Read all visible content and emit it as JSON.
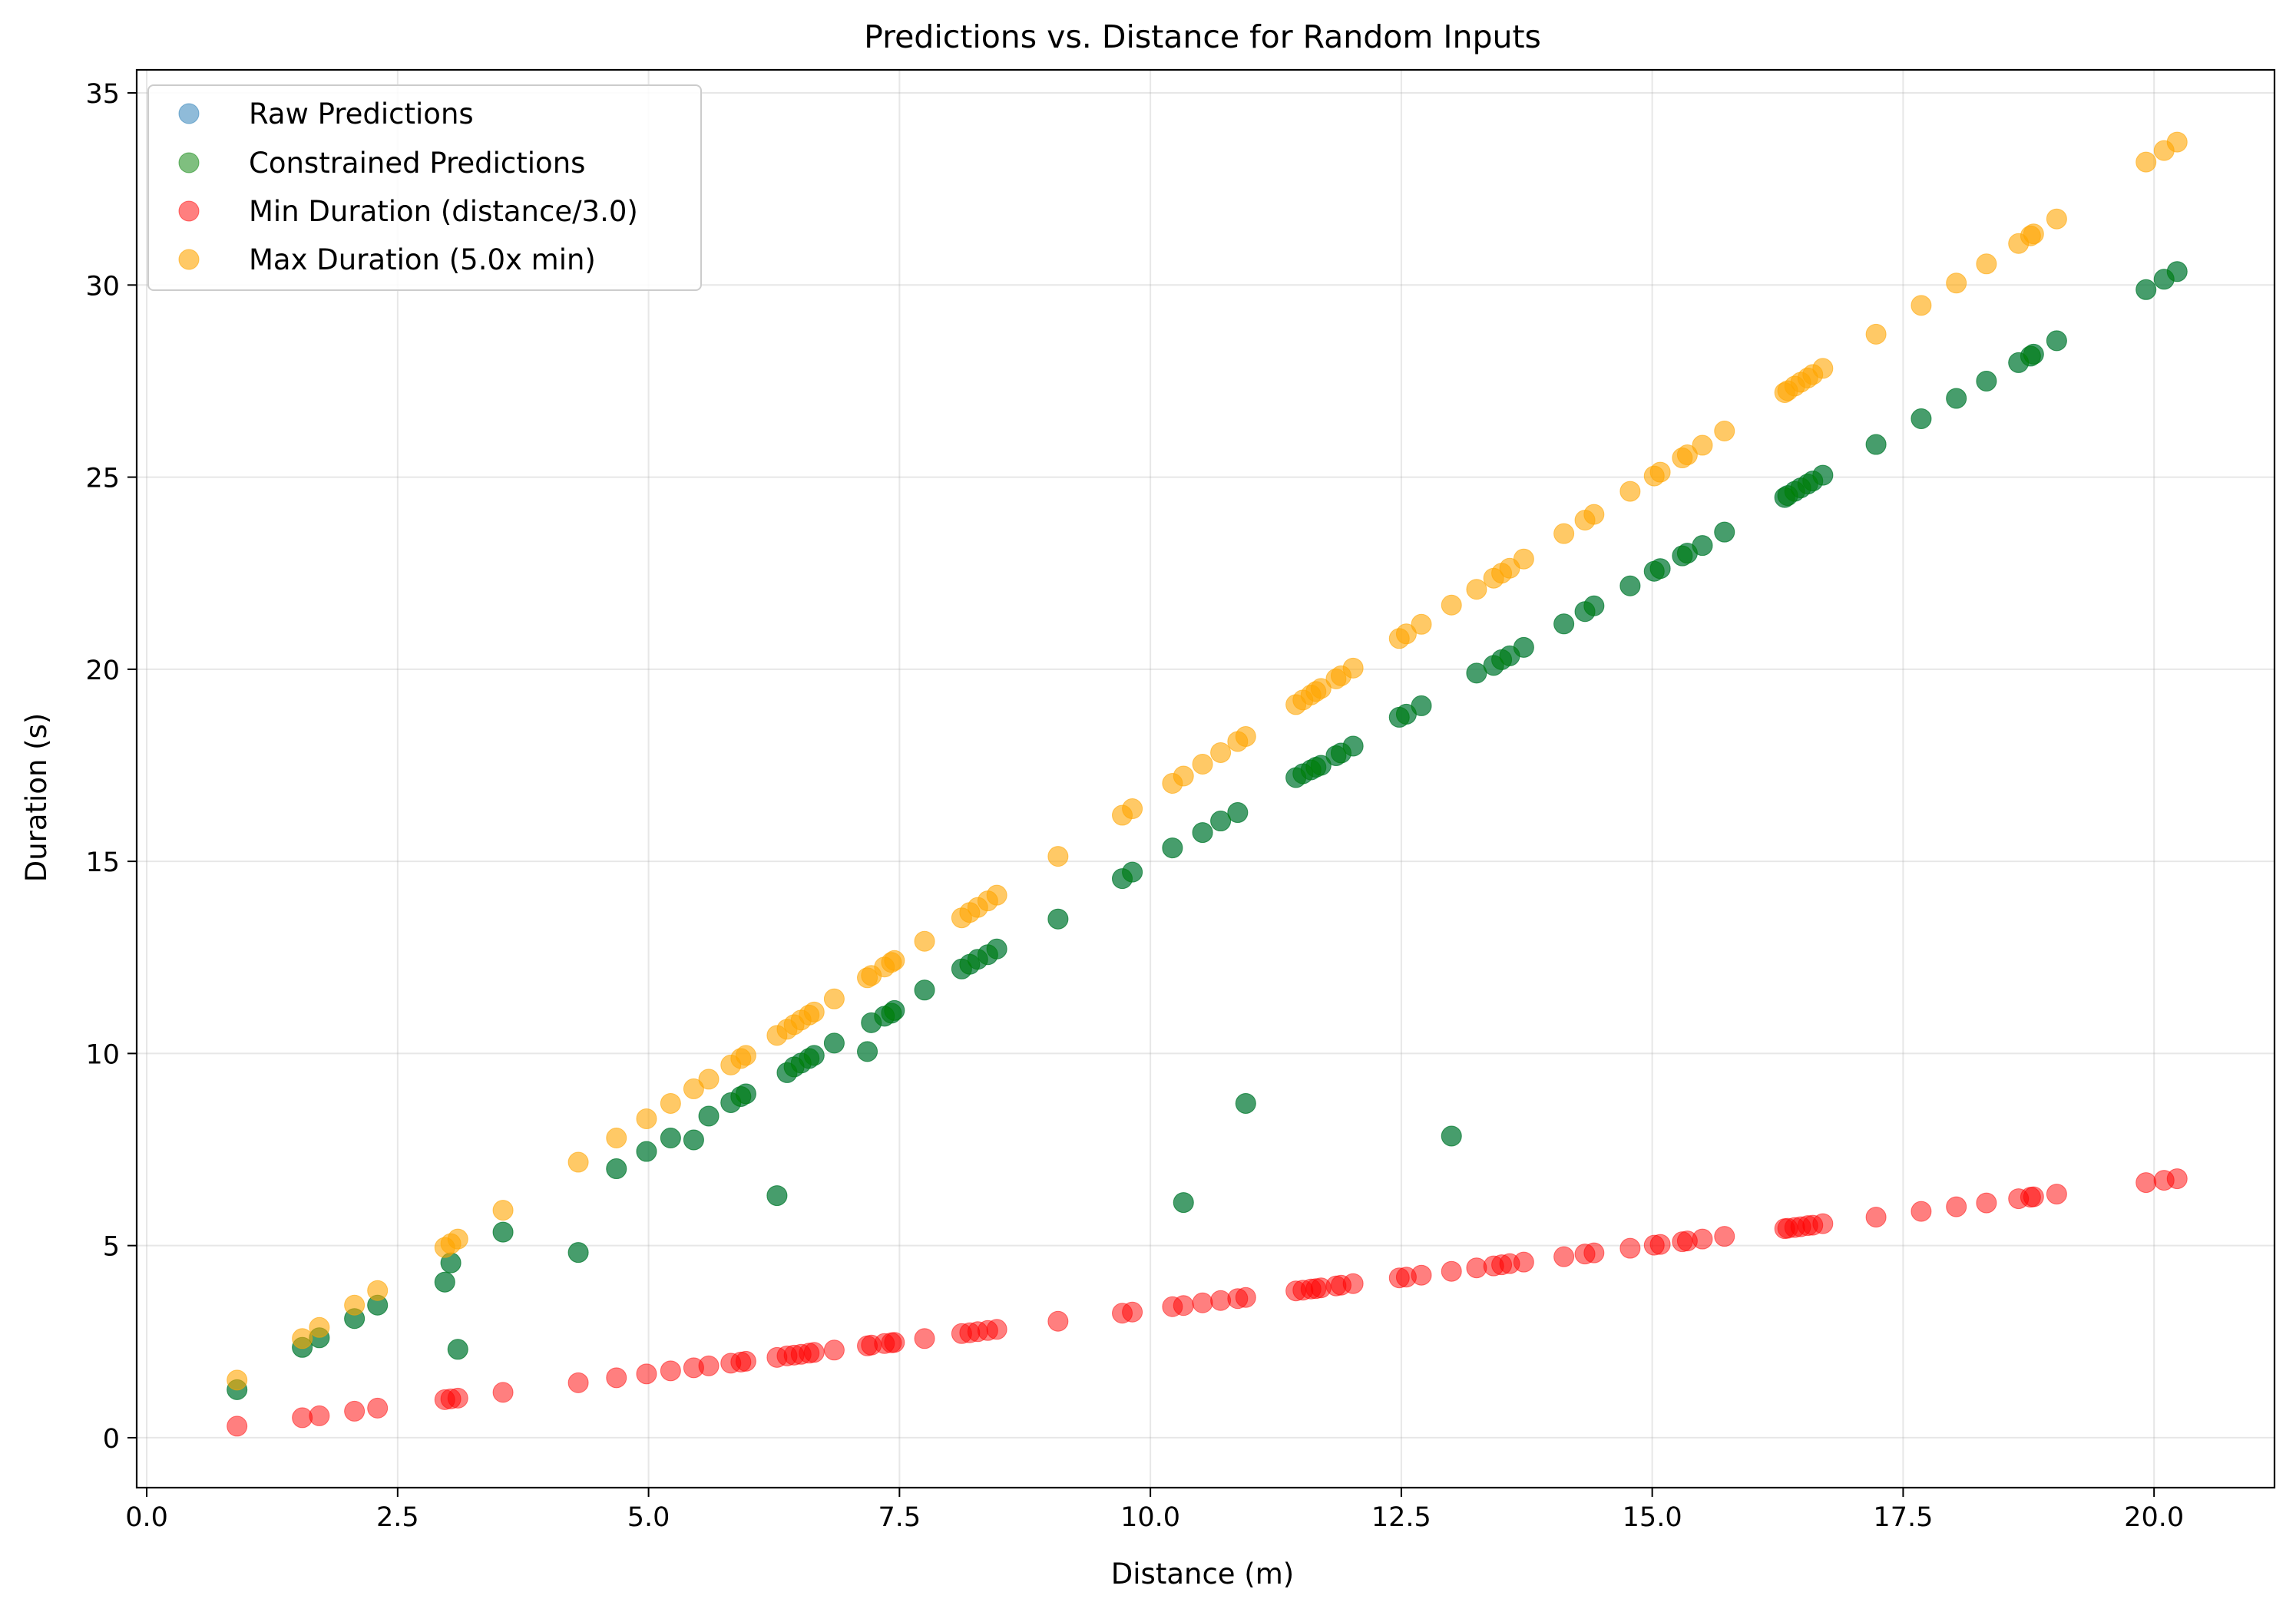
{
  "chart_data": {
    "type": "scatter",
    "title": "Predictions vs. Distance for Random Inputs",
    "xlabel": "Distance (m)",
    "ylabel": "Duration (s)",
    "xlim": [
      -0.1,
      21.2
    ],
    "ylim": [
      -1.3,
      35.6
    ],
    "x_ticks": [
      0.0,
      2.5,
      5.0,
      7.5,
      10.0,
      12.5,
      15.0,
      17.5,
      20.0
    ],
    "x_tick_labels": [
      "0.0",
      "2.5",
      "5.0",
      "7.5",
      "10.0",
      "12.5",
      "15.0",
      "17.5",
      "20.0"
    ],
    "y_ticks": [
      0,
      5,
      10,
      15,
      20,
      25,
      30,
      35
    ],
    "y_tick_labels": [
      "0",
      "5",
      "10",
      "15",
      "20",
      "25",
      "30",
      "35"
    ],
    "grid": true,
    "legend_position": "upper-left",
    "distances": [
      0.9,
      1.55,
      1.72,
      2.07,
      2.3,
      2.97,
      3.03,
      3.1,
      3.55,
      4.3,
      4.68,
      4.98,
      5.22,
      5.45,
      5.6,
      5.82,
      5.92,
      5.97,
      6.28,
      6.38,
      6.45,
      6.52,
      6.6,
      6.65,
      6.85,
      7.18,
      7.22,
      7.35,
      7.42,
      7.45,
      7.75,
      8.12,
      8.2,
      8.28,
      8.38,
      8.47,
      9.08,
      9.72,
      9.82,
      10.22,
      10.33,
      10.52,
      10.7,
      10.87,
      10.95,
      11.45,
      11.52,
      11.6,
      11.65,
      11.7,
      11.85,
      11.9,
      12.02,
      12.48,
      12.55,
      12.7,
      13.0,
      13.25,
      13.42,
      13.5,
      13.58,
      13.72,
      14.12,
      14.33,
      14.42,
      14.78,
      15.02,
      15.08,
      15.3,
      15.35,
      15.5,
      15.72,
      16.32,
      16.35,
      16.42,
      16.48,
      16.55,
      16.6,
      16.7,
      17.23,
      17.68,
      18.03,
      18.33,
      18.65,
      18.77,
      18.8,
      19.03,
      19.92,
      20.1,
      20.23
    ],
    "series": [
      {
        "name": "Raw Predictions",
        "color": "#1f77b4",
        "values": [
          1.25,
          2.35,
          2.6,
          3.1,
          3.45,
          4.05,
          4.55,
          2.3,
          5.35,
          4.82,
          7.0,
          7.45,
          7.8,
          7.75,
          8.37,
          8.72,
          8.88,
          8.95,
          6.3,
          9.5,
          9.65,
          9.75,
          9.87,
          9.95,
          10.27,
          10.05,
          10.8,
          10.97,
          11.05,
          11.12,
          11.65,
          12.2,
          12.32,
          12.45,
          12.57,
          12.72,
          13.5,
          14.55,
          14.72,
          15.35,
          6.12,
          15.75,
          16.05,
          16.27,
          8.7,
          17.18,
          17.28,
          17.38,
          17.45,
          17.5,
          17.75,
          17.82,
          18.0,
          18.75,
          18.83,
          19.05,
          7.85,
          19.9,
          20.1,
          20.25,
          20.35,
          20.57,
          21.18,
          21.5,
          21.65,
          22.17,
          22.55,
          22.62,
          22.95,
          23.02,
          23.22,
          23.57,
          24.47,
          24.52,
          24.63,
          24.72,
          24.82,
          24.9,
          25.05,
          25.85,
          26.52,
          27.05,
          27.5,
          27.98,
          28.15,
          28.2,
          28.55,
          29.88,
          30.15,
          30.35
        ]
      },
      {
        "name": "Constrained Predictions",
        "color": "#008000",
        "values": [
          1.25,
          2.35,
          2.6,
          3.1,
          3.45,
          4.05,
          4.55,
          2.3,
          5.35,
          4.82,
          7.0,
          7.45,
          7.8,
          7.75,
          8.37,
          8.72,
          8.88,
          8.95,
          6.3,
          9.5,
          9.65,
          9.75,
          9.87,
          9.95,
          10.27,
          10.05,
          10.8,
          10.97,
          11.05,
          11.12,
          11.65,
          12.2,
          12.32,
          12.45,
          12.57,
          12.72,
          13.5,
          14.55,
          14.72,
          15.35,
          6.12,
          15.75,
          16.05,
          16.27,
          8.7,
          17.18,
          17.28,
          17.38,
          17.45,
          17.5,
          17.75,
          17.82,
          18.0,
          18.75,
          18.83,
          19.05,
          7.85,
          19.9,
          20.1,
          20.25,
          20.35,
          20.57,
          21.18,
          21.5,
          21.65,
          22.17,
          22.55,
          22.62,
          22.95,
          23.02,
          23.22,
          23.57,
          24.47,
          24.52,
          24.63,
          24.72,
          24.82,
          24.9,
          25.05,
          25.85,
          26.52,
          27.05,
          27.5,
          27.98,
          28.15,
          28.2,
          28.55,
          29.88,
          30.15,
          30.35
        ]
      },
      {
        "name": "Min Duration (distance/3.0)",
        "color": "#ff0000",
        "values": [
          0.3,
          0.52,
          0.57,
          0.69,
          0.77,
          0.99,
          1.01,
          1.03,
          1.18,
          1.43,
          1.56,
          1.66,
          1.74,
          1.82,
          1.87,
          1.94,
          1.97,
          1.99,
          2.09,
          2.13,
          2.15,
          2.17,
          2.2,
          2.22,
          2.28,
          2.39,
          2.41,
          2.45,
          2.47,
          2.48,
          2.58,
          2.71,
          2.73,
          2.76,
          2.79,
          2.82,
          3.03,
          3.24,
          3.27,
          3.41,
          3.44,
          3.51,
          3.57,
          3.62,
          3.65,
          3.82,
          3.84,
          3.87,
          3.88,
          3.9,
          3.95,
          3.97,
          4.01,
          4.16,
          4.18,
          4.23,
          4.33,
          4.42,
          4.47,
          4.5,
          4.53,
          4.57,
          4.71,
          4.78,
          4.81,
          4.93,
          5.01,
          5.03,
          5.1,
          5.12,
          5.17,
          5.24,
          5.44,
          5.45,
          5.47,
          5.49,
          5.52,
          5.53,
          5.57,
          5.74,
          5.89,
          6.01,
          6.11,
          6.22,
          6.26,
          6.27,
          6.34,
          6.64,
          6.7,
          6.74
        ]
      },
      {
        "name": "Max Duration (5.0x min)",
        "color": "#ffa500",
        "values": [
          1.5,
          2.58,
          2.87,
          3.45,
          3.83,
          4.95,
          5.05,
          5.17,
          5.92,
          7.17,
          7.8,
          8.3,
          8.7,
          9.08,
          9.33,
          9.7,
          9.87,
          9.95,
          10.47,
          10.63,
          10.75,
          10.87,
          11.0,
          11.08,
          11.42,
          11.97,
          12.03,
          12.25,
          12.37,
          12.42,
          12.92,
          13.53,
          13.67,
          13.8,
          13.97,
          14.12,
          15.13,
          16.2,
          16.37,
          17.03,
          17.22,
          17.53,
          17.83,
          18.12,
          18.25,
          19.08,
          19.2,
          19.33,
          19.42,
          19.5,
          19.75,
          19.83,
          20.03,
          20.8,
          20.92,
          21.17,
          21.67,
          22.08,
          22.37,
          22.5,
          22.63,
          22.87,
          23.53,
          23.88,
          24.03,
          24.63,
          25.03,
          25.13,
          25.5,
          25.58,
          25.83,
          26.2,
          27.2,
          27.25,
          27.37,
          27.47,
          27.58,
          27.67,
          27.83,
          28.72,
          29.47,
          30.05,
          30.55,
          31.08,
          31.28,
          31.33,
          31.72,
          33.2,
          33.5,
          33.72
        ]
      }
    ]
  }
}
